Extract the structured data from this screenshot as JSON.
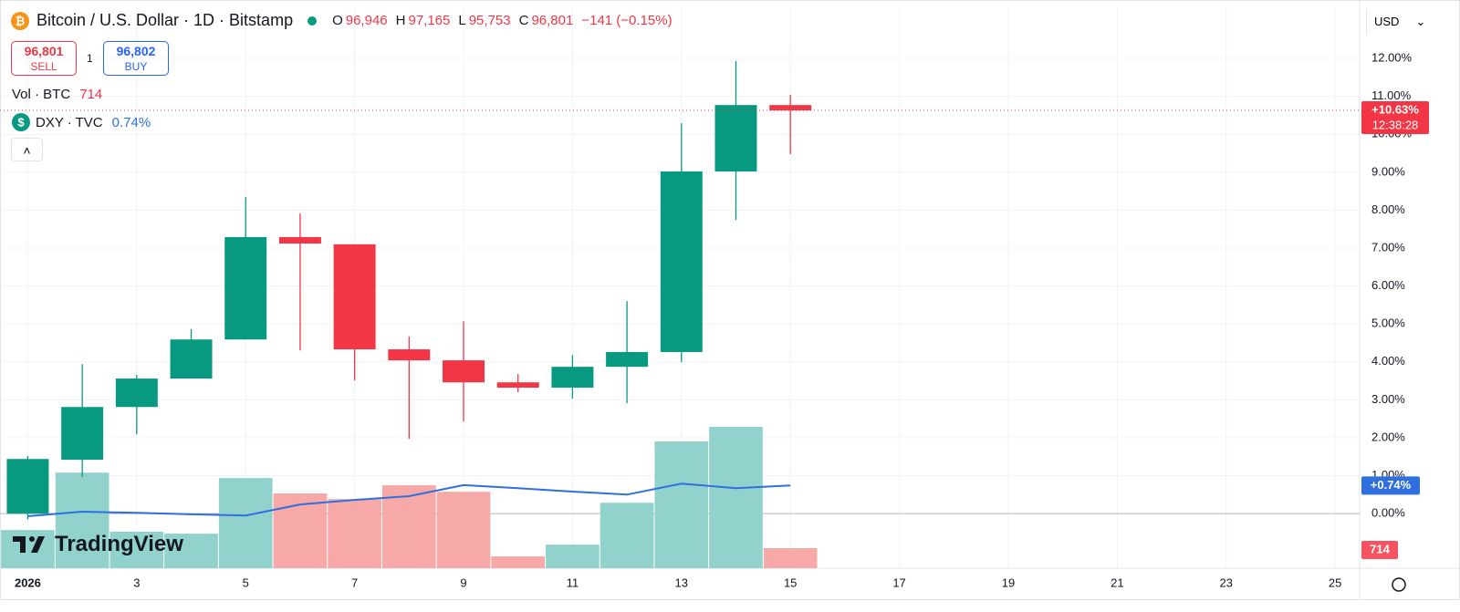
{
  "header": {
    "symbol": "Bitcoin / U.S. Dollar · 1D · Bitstamp",
    "o_label": "O",
    "open": "96,946",
    "h_label": "H",
    "high": "97,165",
    "l_label": "L",
    "low": "95,753",
    "c_label": "C",
    "close": "96,801",
    "change": "−141 (−0.15%)",
    "sell_price": "96,801",
    "sell": "SELL",
    "spread": "1",
    "buy_price": "96,802",
    "buy": "BUY",
    "volume_legend": "Vol · BTC",
    "currency": "USD",
    "branding": "TradingView"
  },
  "chart_data": {
    "type": "candlestick",
    "x": [
      1,
      2,
      3,
      4,
      5,
      6,
      7,
      8,
      9,
      10,
      11,
      12,
      13,
      14,
      15
    ],
    "open": [
      0,
      1.42,
      2.81,
      3.56,
      4.59,
      7.29,
      7.1,
      4.33,
      4.04,
      3.46,
      3.32,
      3.87,
      4.26,
      9.02,
      10.77
    ],
    "high": [
      1.52,
      3.94,
      3.66,
      4.86,
      8.35,
      7.91,
      7.1,
      4.67,
      5.07,
      3.68,
      4.18,
      5.6,
      10.29,
      11.93,
      11.04
    ],
    "low": [
      -0.15,
      0.96,
      2.09,
      3.56,
      4.59,
      4.3,
      3.51,
      1.97,
      2.43,
      3.2,
      3.03,
      2.91,
      3.99,
      7.74,
      9.48
    ],
    "close": [
      1.44,
      2.81,
      3.56,
      4.59,
      7.29,
      7.12,
      4.33,
      4.04,
      3.46,
      3.32,
      3.87,
      4.26,
      9.02,
      10.77,
      10.63
    ],
    "up_color": "#089981",
    "down_color": "#f23645",
    "volume": [
      1360,
      3400,
      1300,
      1230,
      3210,
      2660,
      2460,
      2950,
      2720,
      420,
      840,
      2330,
      4510,
      5030,
      714
    ],
    "volume_up_color": "#92d2cc",
    "volume_down_color": "#f7a9a7",
    "close_label": "+10.63%",
    "countdown": "12:38:28",
    "overlay": {
      "name": "DXY · TVC",
      "color": "#2f6fde",
      "legend_value": "0.74%",
      "last_label": "+0.74%",
      "values": [
        -0.07,
        0.05,
        0.02,
        -0.02,
        -0.05,
        0.24,
        0.36,
        0.46,
        0.75,
        0.67,
        0.58,
        0.5,
        0.79,
        0.67,
        0.74
      ]
    },
    "xlim": [
      0.49,
      25.45
    ],
    "xticks": [
      {
        "value": 1,
        "label": "2026"
      },
      3,
      5,
      7,
      9,
      11,
      13,
      15,
      17,
      19,
      21,
      23,
      25
    ],
    "ylim": [
      -1.44,
      13.42
    ],
    "yticks": [
      {
        "value": 0,
        "label": "0.00%"
      },
      {
        "value": 1,
        "label": "1.00%"
      },
      {
        "value": 2,
        "label": "2.00%"
      },
      {
        "value": 3,
        "label": "3.00%"
      },
      {
        "value": 4,
        "label": "4.00%"
      },
      {
        "value": 5,
        "label": "5.00%"
      },
      {
        "value": 6,
        "label": "6.00%"
      },
      {
        "value": 7,
        "label": "7.00%"
      },
      {
        "value": 8,
        "label": "8.00%"
      },
      {
        "value": 9,
        "label": "9.00%"
      },
      {
        "value": 10,
        "label": "10.00%"
      },
      {
        "value": 11,
        "label": "11.00%"
      },
      {
        "value": 12,
        "label": "12.00%"
      }
    ],
    "grid": true
  }
}
